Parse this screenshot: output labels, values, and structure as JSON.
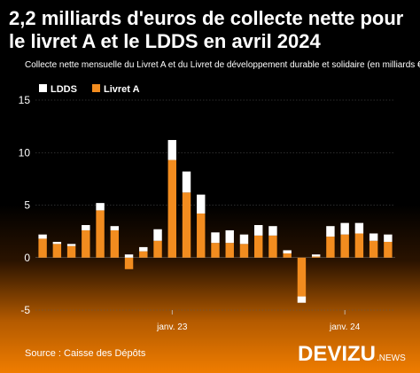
{
  "header": {
    "title": "2,2 milliards d'euros de collecte nette pour le livret A et le LDDS en avril 2024",
    "subtitle": "Collecte nette mensuelle du Livret A et du Livret de développement durable et solidaire (en milliards €)"
  },
  "footer": {
    "source": "Source : Caisse des Dépôts",
    "logo_main": "DEVIZU",
    "logo_suffix": ".NEWS"
  },
  "chart_data": {
    "type": "bar",
    "stacked": true,
    "grid": true,
    "legend_position": "top-left",
    "ylim": [
      -5,
      15
    ],
    "yticks": [
      -5,
      0,
      5,
      10,
      15
    ],
    "x_tick_labels": [
      {
        "index": 9,
        "label": "janv. 23"
      },
      {
        "index": 21,
        "label": "janv. 24"
      }
    ],
    "series": [
      {
        "name": "Livret A",
        "color": "#f28c1f",
        "values": [
          1.8,
          1.3,
          1.1,
          2.6,
          4.5,
          2.6,
          -1.1,
          0.6,
          1.6,
          9.3,
          6.2,
          4.2,
          1.4,
          1.4,
          1.3,
          2.1,
          2.1,
          0.4,
          -3.7,
          0.1,
          2.0,
          2.2,
          2.3,
          1.6,
          1.5
        ]
      },
      {
        "name": "LDDS",
        "color": "#ffffff",
        "values": [
          0.4,
          0.2,
          0.2,
          0.5,
          0.7,
          0.4,
          0.3,
          0.4,
          1.1,
          1.9,
          2.0,
          1.8,
          1.0,
          1.2,
          0.9,
          1.0,
          0.9,
          0.3,
          -0.6,
          0.2,
          1.0,
          1.1,
          1.0,
          0.7,
          0.7
        ]
      }
    ]
  }
}
